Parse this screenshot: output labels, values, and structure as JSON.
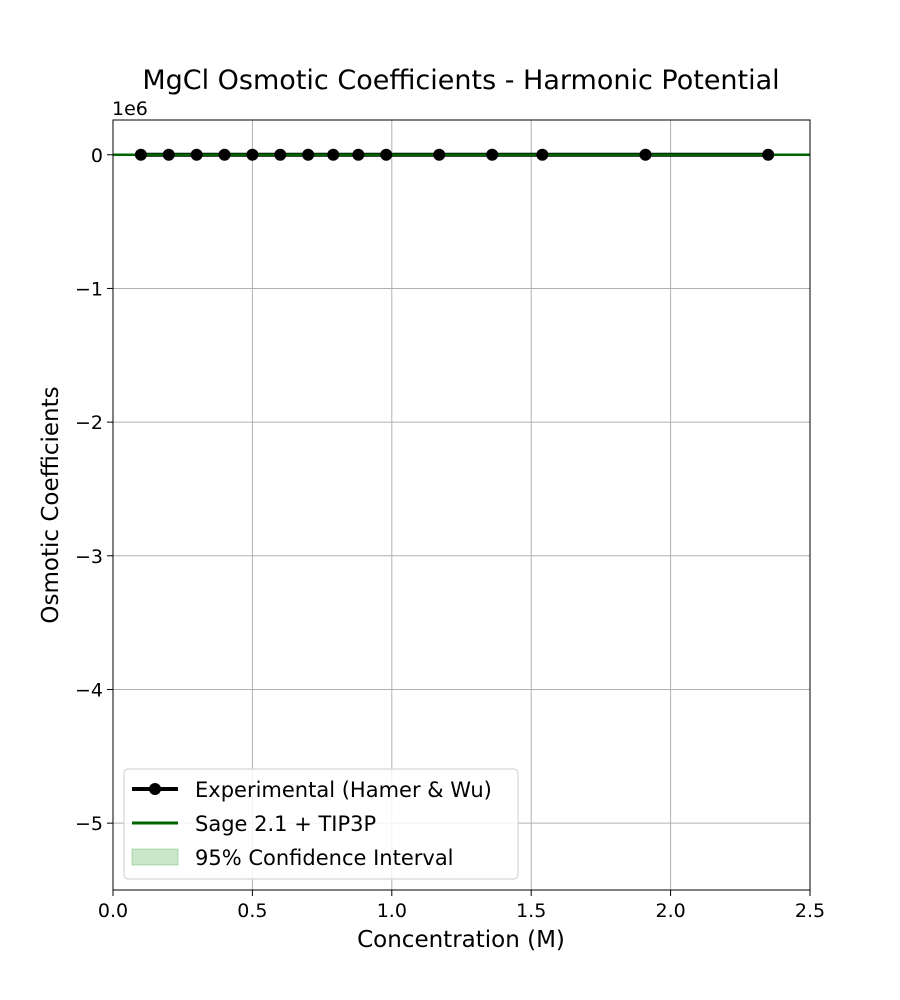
{
  "chart_data": {
    "type": "line",
    "title": "MgCl Osmotic Coefficients - Harmonic Potential",
    "xlabel": "Concentration (M)",
    "ylabel": "Osmotic Coefficients",
    "y_offset_text": "1e6",
    "xlim": [
      0.0,
      2.5
    ],
    "ylim": [
      -5.5,
      0.26
    ],
    "y_unit_multiplier": 1000000,
    "x_ticks": [
      "0.0",
      "0.5",
      "1.0",
      "1.5",
      "2.0",
      "2.5"
    ],
    "y_ticks": [
      "0",
      "−1",
      "−2",
      "−3",
      "−4",
      "−5"
    ],
    "grid": true,
    "legend_position": "lower-left",
    "series": [
      {
        "name": "Experimental (Hamer & Wu)",
        "style": "line-marker",
        "color": "#000000",
        "x": [
          0.1,
          0.2,
          0.3,
          0.4,
          0.5,
          0.6,
          0.7,
          0.79,
          0.88,
          0.98,
          1.17,
          1.36,
          1.54,
          1.91,
          2.35
        ],
        "y": [
          0.0,
          0.0,
          0.0,
          0.0,
          0.0,
          0.0,
          0.0,
          0.0,
          0.0,
          0.0,
          0.0,
          0.0,
          0.0,
          0.0,
          0.0
        ]
      },
      {
        "name": "Sage 2.1 + TIP3P",
        "style": "line",
        "color": "#006400",
        "x": [
          0.0,
          2.5
        ],
        "y": [
          0.0,
          0.0
        ]
      },
      {
        "name": "95% Confidence Interval",
        "style": "band",
        "color": "#2ca02c",
        "x": [
          0.0,
          2.5
        ],
        "y_low": [
          0.0,
          0.0
        ],
        "y_high": [
          0.0,
          0.0
        ]
      }
    ]
  }
}
